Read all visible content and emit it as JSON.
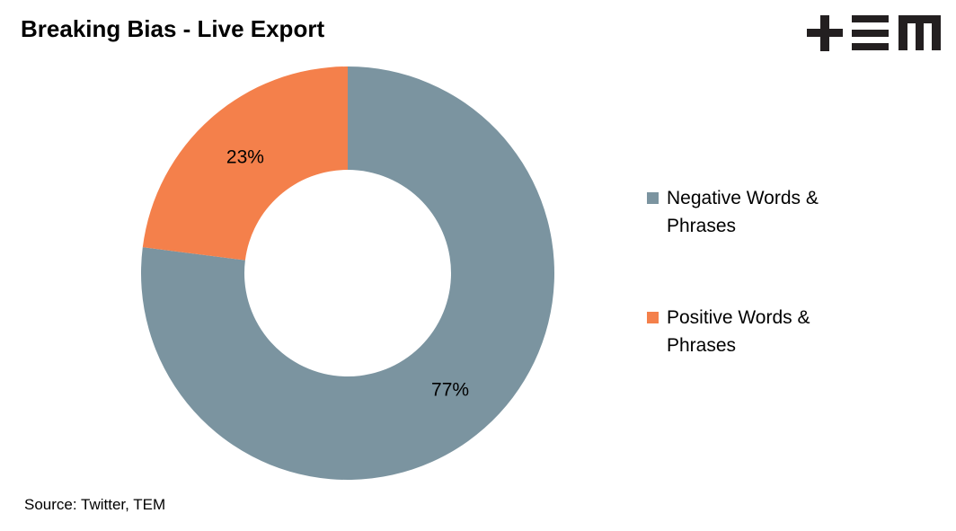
{
  "header": {
    "title": "Breaking Bias - Live Export",
    "logo_text": "TEM"
  },
  "footer": {
    "source": "Source: Twitter, TEM"
  },
  "chart_data": {
    "type": "pie",
    "donut": true,
    "title": "Breaking Bias - Live Export",
    "categories": [
      "Negative Words & Phrases",
      "Positive Words & Phrases"
    ],
    "values": [
      77,
      23
    ],
    "labels": [
      "77%",
      "23%"
    ],
    "colors": [
      "#7B94A0",
      "#F4804B"
    ],
    "legend_position": "right"
  }
}
